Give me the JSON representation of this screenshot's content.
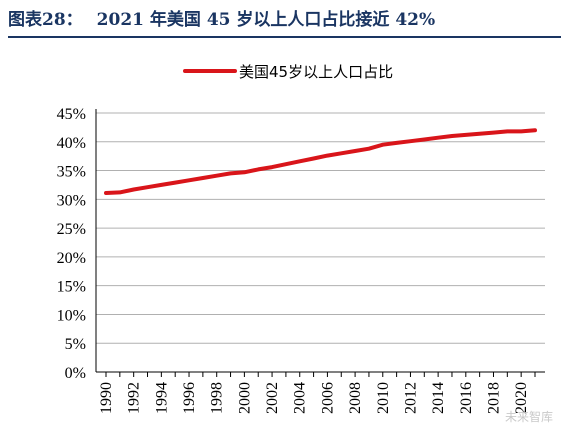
{
  "figure": {
    "label": "图表28：",
    "text": "2021 年美国 45 岁以上人口占比接近 42%"
  },
  "watermark": "未来智库",
  "colors": {
    "line": "#d9151a",
    "title": "#1a3562",
    "grid": "#b0b0b0",
    "axis": "#000000"
  },
  "chart_data": {
    "type": "line",
    "legend_position": "top-center",
    "grid": true,
    "x": [
      1990,
      1991,
      1992,
      1993,
      1994,
      1995,
      1996,
      1997,
      1998,
      1999,
      2000,
      2001,
      2002,
      2003,
      2004,
      2005,
      2006,
      2007,
      2008,
      2009,
      2010,
      2011,
      2012,
      2013,
      2014,
      2015,
      2016,
      2017,
      2018,
      2019,
      2020,
      2021
    ],
    "xticks": [
      "1990",
      "1992",
      "1994",
      "1996",
      "1998",
      "2000",
      "2002",
      "2004",
      "2006",
      "2008",
      "2010",
      "2012",
      "2014",
      "2016",
      "2018",
      "2020"
    ],
    "yticks": [
      "0%",
      "5%",
      "10%",
      "15%",
      "20%",
      "25%",
      "30%",
      "35%",
      "40%",
      "45%"
    ],
    "ylim": [
      0,
      45
    ],
    "series": [
      {
        "name": "美国45岁以上人口占比",
        "values": [
          31.1,
          31.2,
          31.7,
          32.1,
          32.5,
          32.9,
          33.3,
          33.7,
          34.1,
          34.5,
          34.7,
          35.2,
          35.6,
          36.1,
          36.6,
          37.1,
          37.6,
          38.0,
          38.4,
          38.8,
          39.5,
          39.8,
          40.1,
          40.4,
          40.7,
          41.0,
          41.2,
          41.4,
          41.6,
          41.8,
          41.8,
          42.0
        ]
      }
    ]
  }
}
